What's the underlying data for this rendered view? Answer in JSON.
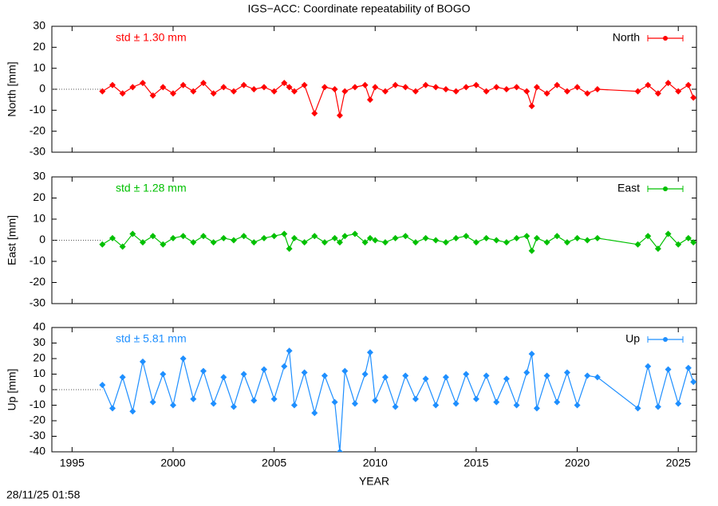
{
  "title": "IGS−ACC: Coordinate repeatability of BOGO",
  "footer": "28/11/25 01:58",
  "chart_data": [
    {
      "type": "line",
      "ylabel": "North [mm]",
      "annotation": "std ± 1.30 mm",
      "x": [
        1996.5,
        1997,
        1997.5,
        1998,
        1998.5,
        1999,
        1999.5,
        2000,
        2000.5,
        2001,
        2001.5,
        2002,
        2002.5,
        2003,
        2003.5,
        2004,
        2004.5,
        2005,
        2005.5,
        2005.75,
        2006,
        2006.5,
        2007,
        2007.5,
        2008,
        2008.25,
        2008.5,
        2009,
        2009.5,
        2009.75,
        2010,
        2010.5,
        2011,
        2011.5,
        2012,
        2012.5,
        2013,
        2013.5,
        2014,
        2014.5,
        2015,
        2015.5,
        2016,
        2016.5,
        2017,
        2017.5,
        2017.75,
        2018,
        2018.5,
        2019,
        2019.5,
        2020,
        2020.5,
        2021,
        2023,
        2023.5,
        2024,
        2024.5,
        2025,
        2025.5,
        2025.75
      ],
      "series": [
        {
          "name": "North",
          "color": "#ff0000",
          "values": [
            -1,
            2,
            -2,
            1,
            3,
            -3,
            1,
            -2,
            2,
            -1,
            3,
            -2,
            1,
            -1,
            2,
            0,
            1,
            -1,
            3,
            1,
            -1,
            2,
            -11.5,
            1,
            0,
            -12.5,
            -1,
            1,
            2,
            -5,
            1,
            -1,
            2,
            1,
            -1,
            2,
            1,
            0,
            -1,
            1,
            2,
            -1,
            1,
            0,
            1,
            -1,
            -8,
            1,
            -2,
            2,
            -1,
            1,
            -2,
            0,
            -1,
            2,
            -2,
            3,
            -1,
            2,
            -4
          ]
        }
      ],
      "xlim": [
        1994,
        2025.9
      ],
      "xticks": [
        1995,
        2000,
        2005,
        2010,
        2015,
        2020,
        2025
      ],
      "ylim": [
        -30,
        30
      ],
      "yticks": [
        -30,
        -20,
        -10,
        0,
        10,
        20,
        30
      ],
      "legend": "top-right"
    },
    {
      "type": "line",
      "ylabel": "East [mm]",
      "annotation": "std ± 1.28 mm",
      "x": [
        1996.5,
        1997,
        1997.5,
        1998,
        1998.5,
        1999,
        1999.5,
        2000,
        2000.5,
        2001,
        2001.5,
        2002,
        2002.5,
        2003,
        2003.5,
        2004,
        2004.5,
        2005,
        2005.5,
        2005.75,
        2006,
        2006.5,
        2007,
        2007.5,
        2008,
        2008.25,
        2008.5,
        2009,
        2009.5,
        2009.75,
        2010,
        2010.5,
        2011,
        2011.5,
        2012,
        2012.5,
        2013,
        2013.5,
        2014,
        2014.5,
        2015,
        2015.5,
        2016,
        2016.5,
        2017,
        2017.5,
        2017.75,
        2018,
        2018.5,
        2019,
        2019.5,
        2020,
        2020.5,
        2021,
        2023,
        2023.5,
        2024,
        2024.5,
        2025,
        2025.5,
        2025.75
      ],
      "series": [
        {
          "name": "East",
          "color": "#00c000",
          "values": [
            -2,
            1,
            -3,
            3,
            -1,
            2,
            -2,
            1,
            2,
            -1,
            2,
            -1,
            1,
            0,
            2,
            -1,
            1,
            2,
            3,
            -4,
            1,
            -1,
            2,
            -1,
            1,
            -1,
            2,
            3,
            -1,
            1,
            0,
            -1,
            1,
            2,
            -1,
            1,
            0,
            -1,
            1,
            2,
            -1,
            1,
            0,
            -1,
            1,
            2,
            -5,
            1,
            -1,
            2,
            -1,
            1,
            0,
            1,
            -2,
            2,
            -4,
            3,
            -2,
            1,
            -1
          ]
        }
      ],
      "xlim": [
        1994,
        2025.9
      ],
      "xticks": [
        1995,
        2000,
        2005,
        2010,
        2015,
        2020,
        2025
      ],
      "ylim": [
        -30,
        30
      ],
      "yticks": [
        -30,
        -20,
        -10,
        0,
        10,
        20,
        30
      ],
      "legend": "top-right"
    },
    {
      "type": "line",
      "ylabel": "Up [mm]",
      "annotation": "std ± 5.81 mm",
      "xlabel": "YEAR",
      "x": [
        1996.5,
        1997,
        1997.5,
        1998,
        1998.5,
        1999,
        1999.5,
        2000,
        2000.5,
        2001,
        2001.5,
        2002,
        2002.5,
        2003,
        2003.5,
        2004,
        2004.5,
        2005,
        2005.5,
        2005.75,
        2006,
        2006.5,
        2007,
        2007.5,
        2008,
        2008.25,
        2008.5,
        2009,
        2009.5,
        2009.75,
        2010,
        2010.5,
        2011,
        2011.5,
        2012,
        2012.5,
        2013,
        2013.5,
        2014,
        2014.5,
        2015,
        2015.5,
        2016,
        2016.5,
        2017,
        2017.5,
        2017.75,
        2018,
        2018.5,
        2019,
        2019.5,
        2020,
        2020.5,
        2021,
        2023,
        2023.5,
        2024,
        2024.5,
        2025,
        2025.5,
        2025.75
      ],
      "series": [
        {
          "name": "Up",
          "color": "#1e8fff",
          "values": [
            3,
            -12,
            8,
            -14,
            18,
            -8,
            10,
            -10,
            20,
            -6,
            12,
            -9,
            8,
            -11,
            10,
            -7,
            13,
            -6,
            15,
            25,
            -10,
            11,
            -15,
            9,
            -8,
            -40,
            12,
            -9,
            10,
            24,
            -7,
            8,
            -11,
            9,
            -6,
            7,
            -10,
            8,
            -9,
            10,
            -6,
            9,
            -8,
            7,
            -10,
            11,
            23,
            -12,
            9,
            -8,
            11,
            -10,
            9,
            8,
            -12,
            15,
            -11,
            13,
            -9,
            14,
            5
          ]
        }
      ],
      "xlim": [
        1994,
        2025.9
      ],
      "xticks": [
        1995,
        2000,
        2005,
        2010,
        2015,
        2020,
        2025
      ],
      "ylim": [
        -40,
        40
      ],
      "yticks": [
        -40,
        -30,
        -20,
        -10,
        0,
        10,
        20,
        30,
        40
      ],
      "legend": "top-right"
    }
  ]
}
